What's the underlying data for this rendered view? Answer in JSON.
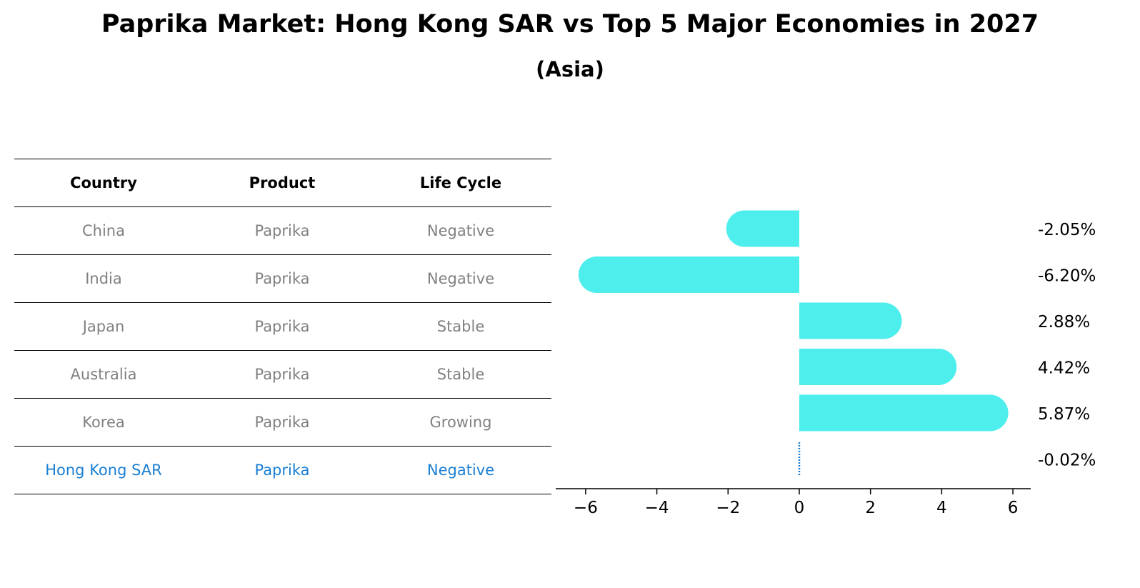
{
  "title": "Paprika Market: Hong Kong SAR vs Top 5 Major Economies in 2027",
  "subtitle": "(Asia)",
  "table": {
    "headers": [
      "Country",
      "Product",
      "Life Cycle"
    ],
    "rows": [
      [
        "China",
        "Paprika",
        "Negative"
      ],
      [
        "India",
        "Paprika",
        "Negative"
      ],
      [
        "Japan",
        "Paprika",
        "Stable"
      ],
      [
        "Australia",
        "Paprika",
        "Stable"
      ],
      [
        "Korea",
        "Paprika",
        "Growing"
      ],
      [
        "Hong Kong SAR",
        "Paprika",
        "Negative"
      ]
    ],
    "highlight_row": 5
  },
  "colors": {
    "bar": "#4eeeed",
    "highlight": "#1a7fd4",
    "muted_text": "#808080"
  },
  "chart_data": {
    "type": "bar",
    "orientation": "horizontal",
    "categories": [
      "China",
      "India",
      "Japan",
      "Australia",
      "Korea",
      "Hong Kong SAR"
    ],
    "values": [
      -2.05,
      -6.2,
      2.88,
      4.42,
      5.87,
      -0.02
    ],
    "value_labels": [
      "-2.05%",
      "-6.20%",
      "2.88%",
      "4.42%",
      "5.87%",
      "-0.02%"
    ],
    "xlim": [
      -6.8,
      6.5
    ],
    "xticks": [
      -6,
      -4,
      -2,
      0,
      2,
      4,
      6
    ],
    "xtick_labels": [
      "−6",
      "−4",
      "−2",
      "0",
      "2",
      "4",
      "6"
    ],
    "grid": false
  }
}
